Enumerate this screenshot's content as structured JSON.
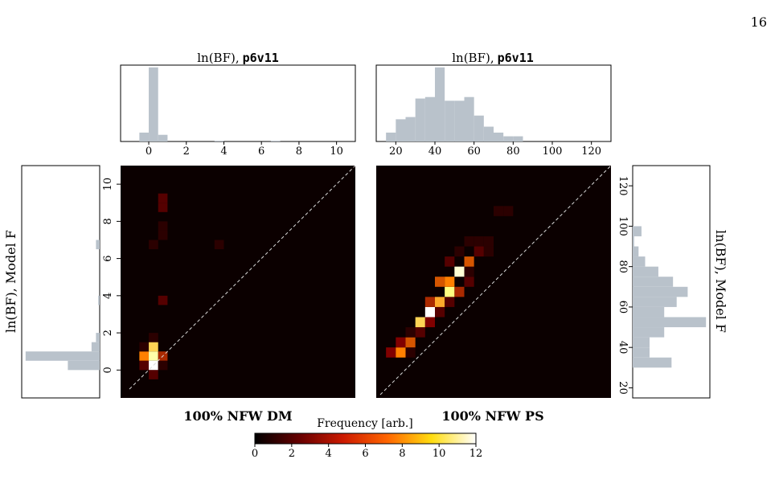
{
  "page_number": "16",
  "colors": {
    "hist_fill": "#b9c2cb",
    "heat_background": "#0b0000",
    "diagonal": "#d9d9d9"
  },
  "panels": {
    "left_title": "100% NFW DM",
    "right_title": "100% NFW PS"
  },
  "colorbar": {
    "label": "Frequency [arb.]",
    "ticks": [
      "0",
      "2",
      "4",
      "6",
      "8",
      "10",
      "12"
    ],
    "range": [
      0,
      12
    ],
    "colormap": "afmhot"
  },
  "chart_data": [
    {
      "type": "bar",
      "panel": "top-left histogram",
      "title_prefix": "ln(BF),",
      "title_model": "p6v11",
      "xlim": [
        -1.5,
        11
      ],
      "xticks": [
        "0",
        "2",
        "4",
        "6",
        "8",
        "10"
      ],
      "bin_width": 0.5,
      "bin_starts": [
        -0.5,
        0,
        0.5,
        3.5,
        6.5
      ],
      "values": [
        0.12,
        1.0,
        0.09,
        0.01,
        0.01
      ]
    },
    {
      "type": "bar",
      "panel": "top-right histogram",
      "title_prefix": "ln(BF),",
      "title_model": "p6v11",
      "xlim": [
        10,
        130
      ],
      "xticks": [
        "20",
        "40",
        "60",
        "80",
        "100",
        "120"
      ],
      "bin_width": 5,
      "bin_starts": [
        15,
        20,
        25,
        30,
        35,
        40,
        45,
        50,
        55,
        60,
        65,
        70,
        75,
        80
      ],
      "values": [
        0.12,
        0.3,
        0.33,
        0.58,
        0.6,
        1.0,
        0.55,
        0.55,
        0.6,
        0.35,
        0.2,
        0.12,
        0.07,
        0.07
      ]
    },
    {
      "type": "bar",
      "panel": "left side histogram (horizontal)",
      "ylabel": "ln(BF), Model F",
      "ylim": [
        -1.5,
        11
      ],
      "bin_width": 0.5,
      "bin_starts": [
        0,
        0.5,
        1,
        1.5,
        3.5,
        6.5
      ],
      "values": [
        0.43,
        1.0,
        0.11,
        0.05,
        0.02,
        0.05
      ]
    },
    {
      "type": "bar",
      "panel": "right side histogram (horizontal)",
      "ylabel": "ln(BF), Model F",
      "ylim": [
        15,
        130
      ],
      "bin_width": 5,
      "bin_starts": [
        30,
        35,
        40,
        45,
        50,
        55,
        60,
        65,
        70,
        75,
        80,
        85,
        90,
        95
      ],
      "values": [
        0.53,
        0.23,
        0.23,
        0.43,
        1.0,
        0.43,
        0.6,
        0.75,
        0.55,
        0.35,
        0.17,
        0.08,
        0.02,
        0.12
      ]
    },
    {
      "type": "heatmap",
      "panel": "100% NFW DM",
      "xlim": [
        -1.5,
        11
      ],
      "ylim": [
        -1.5,
        11
      ],
      "yticks": [
        "0",
        "2",
        "4",
        "6",
        "8",
        "10"
      ],
      "bin_width": 0.5,
      "cells": [
        [
          -0.5,
          0.5,
          6
        ],
        [
          0,
          0.5,
          10
        ],
        [
          0.5,
          0.5,
          4
        ],
        [
          -0.5,
          0,
          2
        ],
        [
          0,
          0,
          12
        ],
        [
          0.5,
          0,
          1
        ],
        [
          0,
          -0.5,
          2
        ],
        [
          -0.5,
          1,
          1
        ],
        [
          0,
          1,
          8
        ],
        [
          0,
          1.5,
          1
        ],
        [
          0.5,
          3.5,
          2
        ],
        [
          0,
          6.5,
          1
        ],
        [
          0.5,
          7,
          1
        ],
        [
          0.5,
          7.5,
          1
        ],
        [
          3.5,
          6.5,
          1
        ],
        [
          0.5,
          8.5,
          2
        ],
        [
          0.5,
          9,
          2
        ]
      ]
    },
    {
      "type": "heatmap",
      "panel": "100% NFW PS",
      "xlim": [
        10,
        130
      ],
      "ylim": [
        15,
        130
      ],
      "yticks": [
        "20",
        "40",
        "60",
        "80",
        "100",
        "120"
      ],
      "bin_width": 5,
      "cells": [
        [
          15,
          35,
          3
        ],
        [
          20,
          35,
          6
        ],
        [
          25,
          35,
          1
        ],
        [
          20,
          40,
          3
        ],
        [
          25,
          40,
          5
        ],
        [
          25,
          45,
          1
        ],
        [
          30,
          45,
          2
        ],
        [
          30,
          50,
          8
        ],
        [
          35,
          50,
          3
        ],
        [
          35,
          55,
          12
        ],
        [
          40,
          55,
          2
        ],
        [
          35,
          60,
          4
        ],
        [
          40,
          60,
          7
        ],
        [
          45,
          60,
          2
        ],
        [
          45,
          65,
          9
        ],
        [
          50,
          65,
          4
        ],
        [
          40,
          70,
          5
        ],
        [
          45,
          70,
          6
        ],
        [
          55,
          70,
          2
        ],
        [
          50,
          75,
          11
        ],
        [
          55,
          75,
          1
        ],
        [
          45,
          80,
          2
        ],
        [
          55,
          80,
          5
        ],
        [
          60,
          85,
          2
        ],
        [
          65,
          85,
          1
        ],
        [
          50,
          85,
          1
        ],
        [
          55,
          90,
          1
        ],
        [
          60,
          90,
          1
        ],
        [
          65,
          90,
          1
        ],
        [
          70,
          105,
          1
        ],
        [
          75,
          105,
          1
        ]
      ]
    }
  ]
}
